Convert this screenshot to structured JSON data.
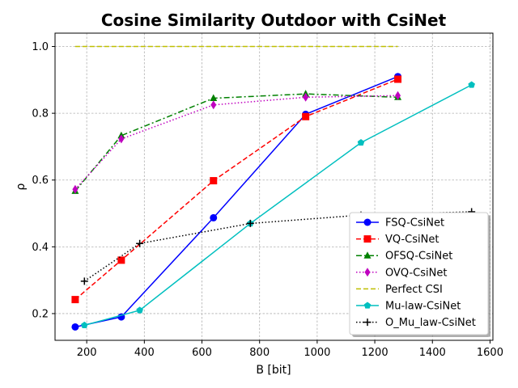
{
  "chart_data": {
    "type": "line",
    "title": "Cosine Similarity Outdoor with CsiNet",
    "xlabel": "B [bit]",
    "ylabel": "ρ",
    "xlim": [
      90,
      1610
    ],
    "ylim": [
      0.12,
      1.04
    ],
    "xticks": [
      200,
      400,
      600,
      800,
      1000,
      1200,
      1400,
      1600
    ],
    "yticks": [
      0.2,
      0.4,
      0.6,
      0.8,
      1.0
    ],
    "xtick_labels": [
      "200",
      "400",
      "600",
      "800",
      "1000",
      "1200",
      "1400",
      "1600"
    ],
    "ytick_labels": [
      "0.2",
      "0.4",
      "0.6",
      "0.8",
      "1.0"
    ],
    "grid": true,
    "legend_position": "lower-right",
    "series": [
      {
        "name": "FSQ-CsiNet",
        "color": "#0000ff",
        "dash": "solid",
        "marker": "circle",
        "x": [
          160,
          320,
          640,
          960,
          1280
        ],
        "y": [
          0.16,
          0.19,
          0.487,
          0.797,
          0.91
        ]
      },
      {
        "name": "VQ-CsiNet",
        "color": "#ff0000",
        "dash": "dashed",
        "marker": "square",
        "x": [
          160,
          320,
          640,
          960,
          1280
        ],
        "y": [
          0.242,
          0.36,
          0.598,
          0.79,
          0.902
        ]
      },
      {
        "name": "OFSQ-CsiNet",
        "color": "#008000",
        "dash": "dashdot",
        "marker": "triangle",
        "x": [
          160,
          320,
          640,
          960,
          1280
        ],
        "y": [
          0.567,
          0.733,
          0.845,
          0.858,
          0.848
        ]
      },
      {
        "name": "OVQ-CsiNet",
        "color": "#bf00bf",
        "dash": "dotted",
        "marker": "diamond",
        "x": [
          160,
          320,
          640,
          960,
          1280
        ],
        "y": [
          0.572,
          0.723,
          0.825,
          0.848,
          0.853
        ]
      },
      {
        "name": "Perfect CSI",
        "color": "#bfbf00",
        "dash": "dashed",
        "marker": "none",
        "x": [
          160,
          1280
        ],
        "y": [
          1.0,
          1.0
        ]
      },
      {
        "name": "Mu-law-CsiNet",
        "color": "#00bfbf",
        "dash": "solid",
        "marker": "pentagon",
        "x": [
          192,
          384,
          768,
          1152,
          1536
        ],
        "y": [
          0.165,
          0.21,
          0.47,
          0.712,
          0.885
        ]
      },
      {
        "name": "O_Mu_law-CsiNet",
        "color": "#000000",
        "dash": "dotted",
        "marker": "plus",
        "x": [
          192,
          384,
          768,
          1152,
          1536
        ],
        "y": [
          0.297,
          0.41,
          0.47,
          0.495,
          0.505
        ]
      }
    ]
  }
}
